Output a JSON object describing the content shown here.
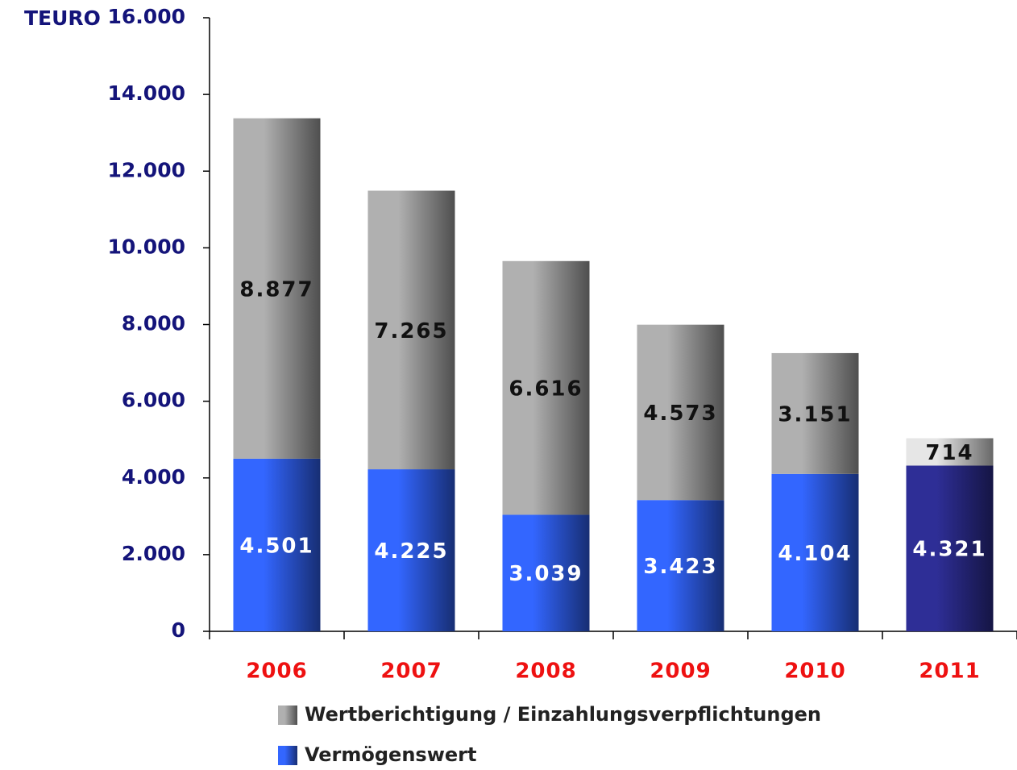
{
  "chart_data": {
    "type": "stacked_bar",
    "y_unit_label": "TEURO",
    "categories": [
      "2006",
      "2007",
      "2008",
      "2009",
      "2010",
      "2011"
    ],
    "series": [
      {
        "name": "Vermögenswert",
        "color": "#3366ff",
        "colors": [
          "#3366ff",
          "#3366ff",
          "#3366ff",
          "#3366ff",
          "#3366ff",
          "#2e2e96"
        ],
        "values": [
          4501,
          4225,
          3039,
          3423,
          4104,
          4321
        ],
        "value_labels": [
          "4.501",
          "4.225",
          "3.039",
          "3.423",
          "4.104",
          "4.321"
        ]
      },
      {
        "name": "Wertberichtigung / Einzahlungsverpflichtungen",
        "color": "#b0b0b0",
        "colors": [
          "#b0b0b0",
          "#b0b0b0",
          "#b0b0b0",
          "#b0b0b0",
          "#b0b0b0",
          "#e6e6e6"
        ],
        "values": [
          8877,
          7265,
          6616,
          4573,
          3151,
          714
        ],
        "value_labels": [
          "8.877",
          "7.265",
          "6.616",
          "4.573",
          "3.151",
          "714"
        ]
      }
    ],
    "ylim": [
      0,
      16000
    ],
    "yticks": [
      0,
      {
        "value": 2000,
        "label": "2.000"
      },
      {
        "value": 4000,
        "label": "4.000"
      },
      {
        "value": 6000,
        "label": "6.000"
      },
      {
        "value": 8000,
        "label": "8.000"
      },
      {
        "value": 10000,
        "label": "10.000"
      },
      {
        "value": 12000,
        "label": "12.000"
      },
      {
        "value": 14000,
        "label": "14.000"
      },
      {
        "value": 16000,
        "label": "16.000"
      }
    ],
    "legend": "bottom"
  }
}
